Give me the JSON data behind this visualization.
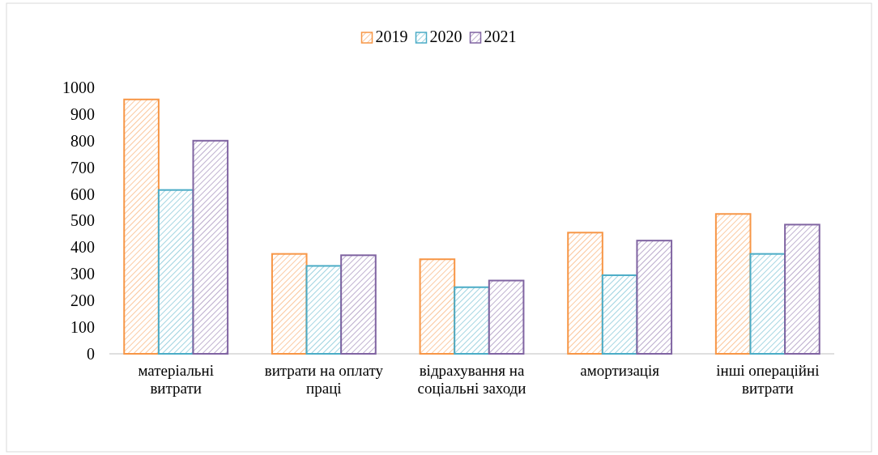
{
  "chart_data": {
    "type": "bar",
    "categories": [
      "матеріальні витрати",
      "витрати на оплату праці",
      "відрахування на соціальні заходи",
      "амортизація",
      "інші операційні витрати"
    ],
    "series": [
      {
        "name": "2019",
        "color": "#f79646",
        "values": [
          955,
          375,
          355,
          455,
          525
        ]
      },
      {
        "name": "2020",
        "color": "#4bacc6",
        "values": [
          615,
          330,
          250,
          295,
          375
        ]
      },
      {
        "name": "2021",
        "color": "#8064a2",
        "values": [
          800,
          370,
          275,
          425,
          485
        ]
      }
    ],
    "ylim": [
      0,
      1000
    ],
    "yticks": [
      0,
      100,
      200,
      300,
      400,
      500,
      600,
      700,
      800,
      900,
      1000
    ],
    "legend": "top"
  }
}
